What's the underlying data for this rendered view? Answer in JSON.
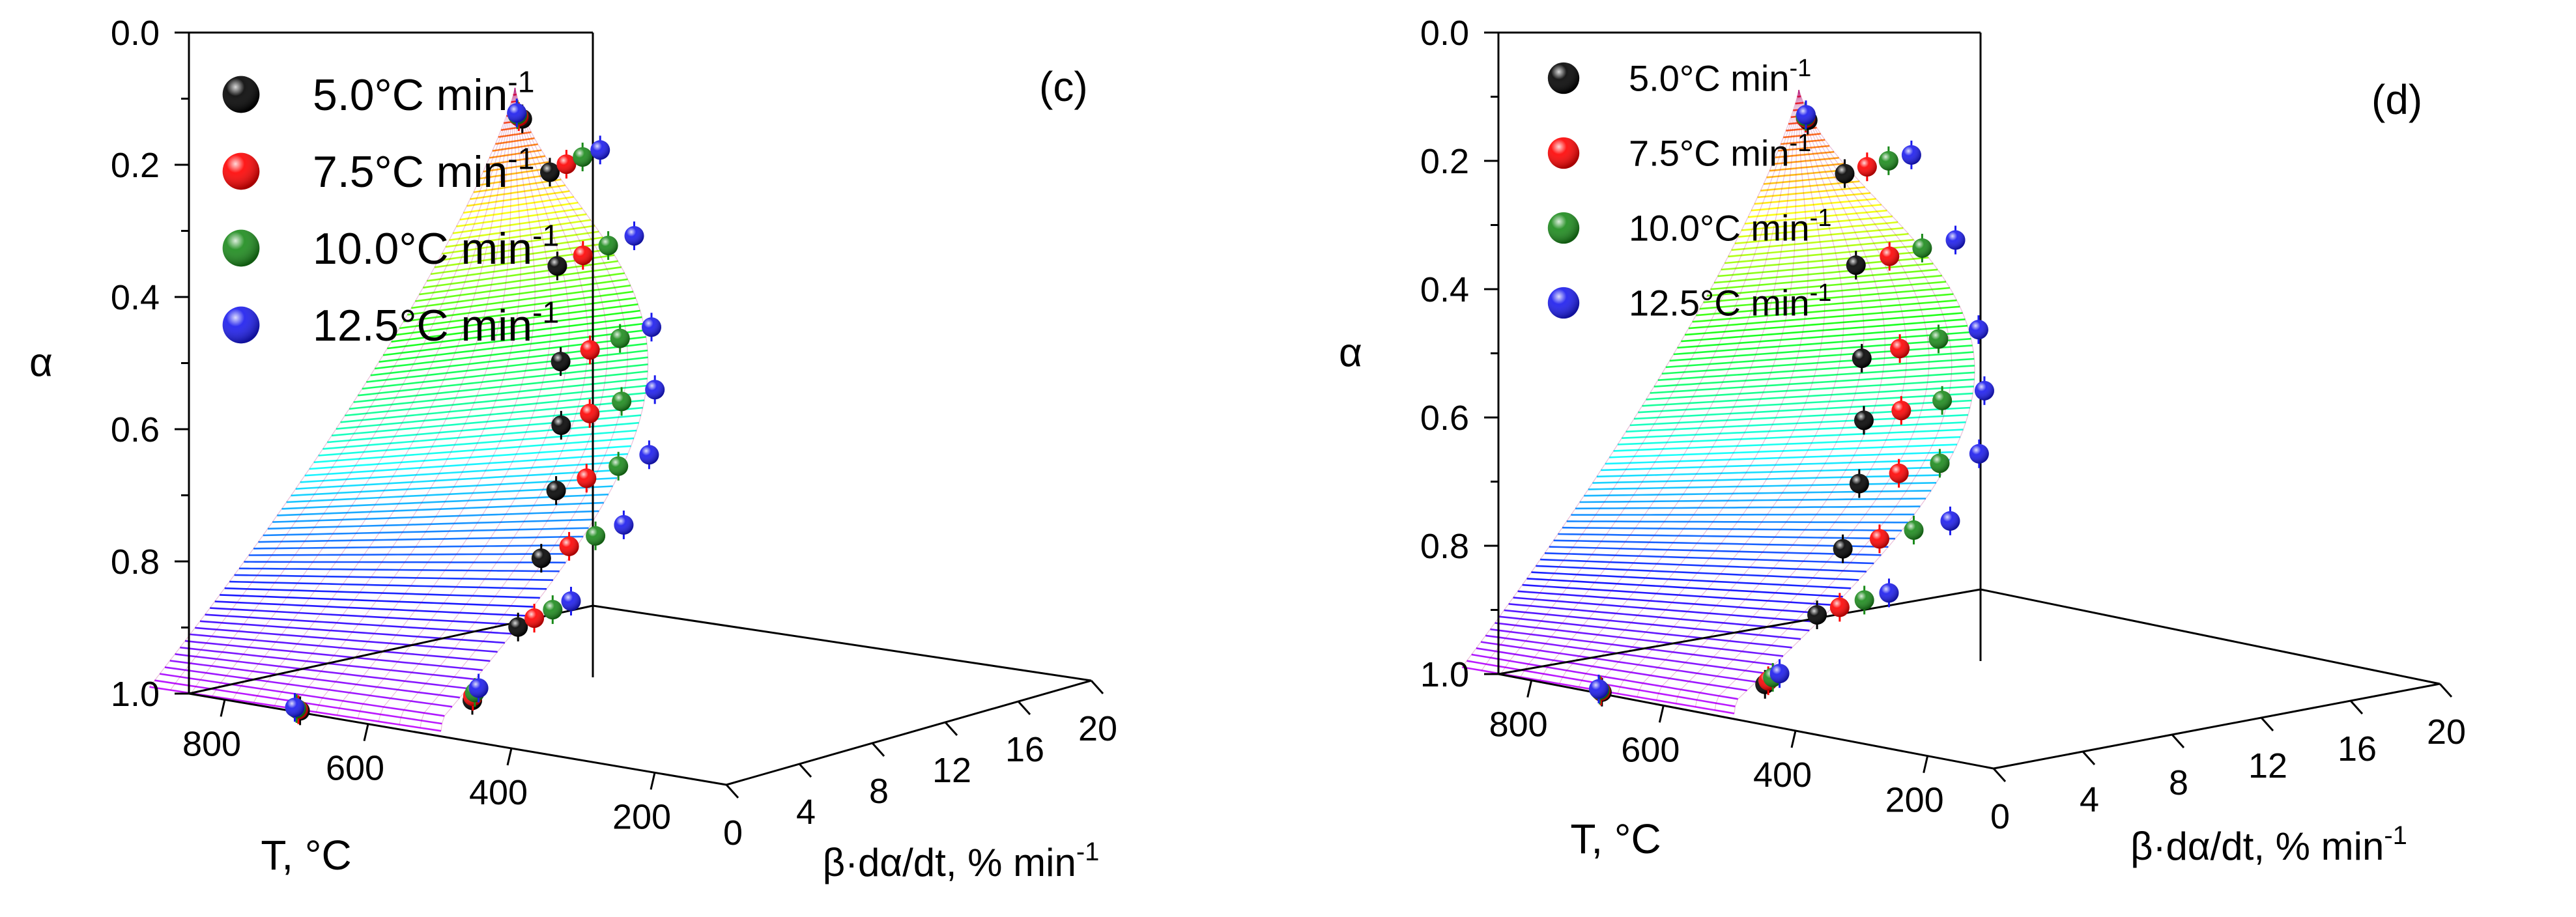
{
  "chart_data": [
    {
      "id": "c",
      "type": "scatter",
      "panel_label": "(c)",
      "title": "",
      "xlabel": "T, °C",
      "ylabel": "α",
      "zlabel": "β·dα/dt, % min",
      "zlabel_exp": "-1",
      "xlim": [
        100,
        850
      ],
      "ylim": [
        0.0,
        1.0
      ],
      "zlim": [
        0,
        20
      ],
      "x_ticks": [
        "800",
        "600",
        "400",
        "200"
      ],
      "y_ticks": [
        "0.0",
        "0.2",
        "0.4",
        "0.6",
        "0.8",
        "1.0"
      ],
      "z_ticks": [
        "0",
        "4",
        "8",
        "12",
        "16",
        "20"
      ],
      "surface": "fitted rainbow surface colored by α (red at 0.0 to violet at 1.0)",
      "legend": {
        "position": "top-left",
        "entries": [
          {
            "label": "5.0°C min",
            "sup": "-1",
            "color": "#000000"
          },
          {
            "label": "7.5°C min",
            "sup": "-1",
            "color": "#ff0000"
          },
          {
            "label": "10.0°C min",
            "sup": "-1",
            "color": "#1a8a1a"
          },
          {
            "label": "12.5°C min",
            "sup": "-1",
            "color": "#1a1aee"
          }
        ]
      },
      "series": [
        {
          "name": "5.0°C min-1",
          "color": "#000000",
          "points": [
            [
              395,
              0.05,
              0.4
            ],
            [
              410,
              0.15,
              2.5
            ],
            [
              420,
              0.3,
              3.3
            ],
            [
              428,
              0.45,
              3.8
            ],
            [
              435,
              0.55,
              4.1
            ],
            [
              442,
              0.65,
              4.1
            ],
            [
              450,
              0.75,
              3.6
            ],
            [
              462,
              0.85,
              2.8
            ],
            [
              480,
              0.95,
              1.0
            ],
            [
              700,
              1.0,
              0.2
            ]
          ]
        },
        {
          "name": "7.5°C min-1",
          "color": "#ff0000",
          "points": [
            [
              405,
              0.05,
              0.6
            ],
            [
              420,
              0.15,
              3.8
            ],
            [
              430,
              0.3,
              5.1
            ],
            [
              438,
              0.45,
              5.8
            ],
            [
              446,
              0.55,
              6.1
            ],
            [
              453,
              0.65,
              6.2
            ],
            [
              462,
              0.75,
              5.6
            ],
            [
              475,
              0.85,
              4.2
            ],
            [
              492,
              0.95,
              1.5
            ],
            [
              705,
              1.0,
              0.3
            ]
          ]
        },
        {
          "name": "10.0°C min-1",
          "color": "#1a8a1a",
          "points": [
            [
              412,
              0.05,
              0.8
            ],
            [
              428,
              0.15,
              5.0
            ],
            [
              438,
              0.3,
              6.8
            ],
            [
              447,
              0.45,
              7.8
            ],
            [
              455,
              0.55,
              8.2
            ],
            [
              462,
              0.65,
              8.3
            ],
            [
              471,
              0.75,
              7.4
            ],
            [
              485,
              0.85,
              5.6
            ],
            [
              502,
              0.95,
              2.0
            ],
            [
              710,
              1.0,
              0.4
            ]
          ]
        },
        {
          "name": "12.5°C min-1",
          "color": "#1a1aee",
          "points": [
            [
              418,
              0.05,
              1.0
            ],
            [
              434,
              0.15,
              6.2
            ],
            [
              445,
              0.3,
              8.5
            ],
            [
              454,
              0.45,
              9.8
            ],
            [
              462,
              0.55,
              10.3
            ],
            [
              470,
              0.65,
              10.3
            ],
            [
              480,
              0.75,
              9.3
            ],
            [
              495,
              0.85,
              7.0
            ],
            [
              512,
              0.95,
              2.6
            ],
            [
              715,
              1.0,
              0.5
            ]
          ]
        }
      ]
    },
    {
      "id": "d",
      "type": "scatter",
      "panel_label": "(d)",
      "title": "",
      "xlabel": "T, °C",
      "ylabel": "α",
      "zlabel": "β·dα/dt, % min",
      "zlabel_exp": "-1",
      "xlim": [
        100,
        850
      ],
      "ylim": [
        0.0,
        1.0
      ],
      "zlim": [
        0,
        20
      ],
      "x_ticks": [
        "800",
        "600",
        "400",
        "200"
      ],
      "y_ticks": [
        "0.0",
        "0.2",
        "0.4",
        "0.6",
        "0.8",
        "1.0"
      ],
      "z_ticks": [
        "0",
        "4",
        "8",
        "12",
        "16",
        "20"
      ],
      "surface": "fitted rainbow surface colored by α (red at 0.0 to violet at 1.0)",
      "legend": {
        "position": "top-left",
        "entries": [
          {
            "label": "5.0°C min",
            "sup": "-1",
            "color": "#000000"
          },
          {
            "label": "7.5°C min",
            "sup": "-1",
            "color": "#ff0000"
          },
          {
            "label": "10.0°C min",
            "sup": "-1",
            "color": "#1a8a1a"
          },
          {
            "label": "12.5°C min",
            "sup": "-1",
            "color": "#1a1aee"
          }
        ]
      },
      "series": [
        {
          "name": "5.0°C min-1",
          "color": "#000000",
          "points": [
            [
              395,
              0.05,
              0.4
            ],
            [
              410,
              0.15,
              2.5
            ],
            [
              420,
              0.3,
              3.3
            ],
            [
              428,
              0.45,
              3.8
            ],
            [
              435,
              0.55,
              4.1
            ],
            [
              442,
              0.65,
              4.1
            ],
            [
              450,
              0.75,
              3.6
            ],
            [
              462,
              0.85,
              2.8
            ],
            [
              480,
              0.95,
              1.0
            ],
            [
              700,
              1.0,
              0.2
            ]
          ]
        },
        {
          "name": "7.5°C min-1",
          "color": "#ff0000",
          "points": [
            [
              405,
              0.05,
              0.6
            ],
            [
              420,
              0.15,
              3.8
            ],
            [
              430,
              0.3,
              5.1
            ],
            [
              438,
              0.45,
              5.8
            ],
            [
              446,
              0.55,
              6.1
            ],
            [
              453,
              0.65,
              6.2
            ],
            [
              462,
              0.75,
              5.6
            ],
            [
              475,
              0.85,
              4.2
            ],
            [
              492,
              0.95,
              1.5
            ],
            [
              705,
              1.0,
              0.3
            ]
          ]
        },
        {
          "name": "10.0°C min-1",
          "color": "#1a8a1a",
          "points": [
            [
              412,
              0.05,
              0.8
            ],
            [
              428,
              0.15,
              5.0
            ],
            [
              438,
              0.3,
              6.8
            ],
            [
              447,
              0.45,
              7.8
            ],
            [
              455,
              0.55,
              8.2
            ],
            [
              462,
              0.65,
              8.3
            ],
            [
              471,
              0.75,
              7.4
            ],
            [
              485,
              0.85,
              5.6
            ],
            [
              502,
              0.95,
              2.0
            ],
            [
              710,
              1.0,
              0.4
            ]
          ]
        },
        {
          "name": "12.5°C min-1",
          "color": "#1a1aee",
          "points": [
            [
              418,
              0.05,
              1.0
            ],
            [
              434,
              0.15,
              6.2
            ],
            [
              445,
              0.3,
              8.5
            ],
            [
              454,
              0.45,
              9.8
            ],
            [
              462,
              0.55,
              10.3
            ],
            [
              470,
              0.65,
              10.3
            ],
            [
              480,
              0.75,
              9.3
            ],
            [
              495,
              0.85,
              7.0
            ],
            [
              512,
              0.95,
              2.6
            ],
            [
              715,
              1.0,
              0.5
            ]
          ]
        }
      ]
    }
  ]
}
